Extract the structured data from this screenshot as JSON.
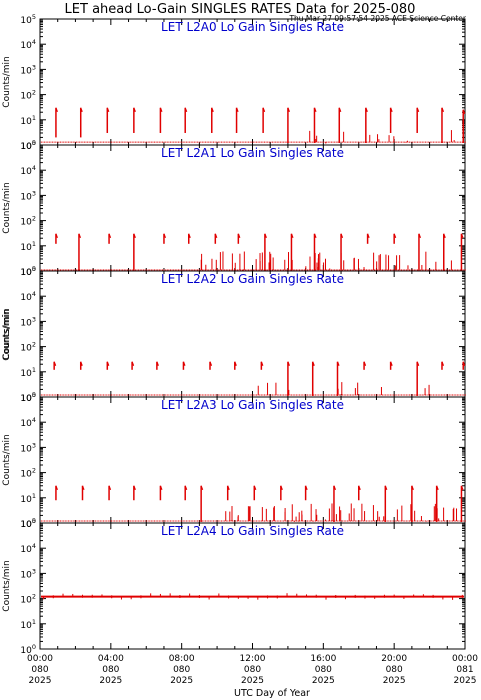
{
  "title": "LET ahead Lo-Gain SINGLES RATES Data for 2025-080",
  "timestamp": "Thu Mar 27 09:57:54 2025 ACE Science Center",
  "colors": {
    "data": "#e00000",
    "panel_title": "#0000cc",
    "frame": "#000000"
  },
  "ylabel": "Counts/min",
  "xlabel": "UTC Day of Year",
  "y_ticks": [
    {
      "exp": "0",
      "value": 1
    },
    {
      "exp": "1",
      "value": 10
    },
    {
      "exp": "2",
      "value": 100
    },
    {
      "exp": "3",
      "value": 1000
    },
    {
      "exp": "4",
      "value": 10000
    },
    {
      "exp": "5",
      "value": 100000
    }
  ],
  "x_ticks": [
    {
      "hour": 0,
      "time": "00:00",
      "doy": "080",
      "year": "2025"
    },
    {
      "hour": 4,
      "time": "04:00",
      "doy": "080",
      "year": "2025"
    },
    {
      "hour": 8,
      "time": "08:00",
      "doy": "080",
      "year": "2025"
    },
    {
      "hour": 12,
      "time": "12:00",
      "doy": "080",
      "year": "2025"
    },
    {
      "hour": 16,
      "time": "16:00",
      "doy": "080",
      "year": "2025"
    },
    {
      "hour": 20,
      "time": "20:00",
      "doy": "080",
      "year": "2025"
    },
    {
      "hour": 24,
      "time": "00:00",
      "doy": "081",
      "year": "2025"
    }
  ],
  "chart_data": [
    {
      "type": "scatter",
      "title": "LET L2A0 Lo Gain Singles Rate",
      "xlim": [
        0,
        24
      ],
      "ylim": [
        1,
        100000
      ],
      "yscale": "log",
      "baseline": 1.3,
      "spikes": [
        {
          "x": 0.9,
          "top": 30,
          "bottom": 2
        },
        {
          "x": 2.3,
          "top": 30,
          "bottom": 2
        },
        {
          "x": 3.8,
          "top": 30,
          "bottom": 3
        },
        {
          "x": 5.3,
          "top": 30,
          "bottom": 3
        },
        {
          "x": 6.8,
          "top": 30,
          "bottom": 3
        },
        {
          "x": 8.2,
          "top": 30,
          "bottom": 3
        },
        {
          "x": 9.7,
          "top": 30,
          "bottom": 3
        },
        {
          "x": 11.1,
          "top": 30,
          "bottom": 3
        },
        {
          "x": 12.6,
          "top": 30,
          "bottom": 3
        },
        {
          "x": 14.0,
          "top": 30,
          "bottom": 1.2
        },
        {
          "x": 15.5,
          "top": 30,
          "bottom": 1.2
        },
        {
          "x": 16.9,
          "top": 30,
          "bottom": 1.2
        },
        {
          "x": 18.4,
          "top": 30,
          "bottom": 1.2
        },
        {
          "x": 19.8,
          "top": 30,
          "bottom": 3
        },
        {
          "x": 21.3,
          "top": 30,
          "bottom": 3
        },
        {
          "x": 22.7,
          "top": 30,
          "bottom": 1.2
        },
        {
          "x": 23.9,
          "top": 25,
          "bottom": 1.2
        }
      ],
      "bursts": [
        {
          "from": 14.5,
          "to": 23.8,
          "n": 14,
          "maxY": 4
        }
      ]
    },
    {
      "type": "scatter",
      "title": "LET L2A1 Lo Gain Singles Rate",
      "xlim": [
        0,
        24
      ],
      "ylim": [
        1,
        100000
      ],
      "yscale": "log",
      "baseline": 1.1,
      "spikes": [
        {
          "x": 0.9,
          "top": 30,
          "bottom": 12
        },
        {
          "x": 2.2,
          "top": 30,
          "bottom": 1
        },
        {
          "x": 3.9,
          "top": 30,
          "bottom": 12
        },
        {
          "x": 5.3,
          "top": 30,
          "bottom": 1
        },
        {
          "x": 7.0,
          "top": 30,
          "bottom": 12
        },
        {
          "x": 8.4,
          "top": 30,
          "bottom": 12
        },
        {
          "x": 9.9,
          "top": 30,
          "bottom": 12
        },
        {
          "x": 11.2,
          "top": 30,
          "bottom": 12
        },
        {
          "x": 12.7,
          "top": 30,
          "bottom": 1
        },
        {
          "x": 14.2,
          "top": 30,
          "bottom": 1
        },
        {
          "x": 15.5,
          "top": 30,
          "bottom": 1
        },
        {
          "x": 17.0,
          "top": 30,
          "bottom": 1
        },
        {
          "x": 18.5,
          "top": 30,
          "bottom": 12
        },
        {
          "x": 20.0,
          "top": 30,
          "bottom": 12
        },
        {
          "x": 21.4,
          "top": 30,
          "bottom": 1
        },
        {
          "x": 22.8,
          "top": 30,
          "bottom": 1
        },
        {
          "x": 23.8,
          "top": 30,
          "bottom": 1
        }
      ],
      "bursts": [
        {
          "from": 9.0,
          "to": 23.9,
          "n": 60,
          "maxY": 6
        }
      ]
    },
    {
      "type": "scatter",
      "title": "LET L2A2 Lo Gain Singles Rate",
      "xlim": [
        0,
        24
      ],
      "ylim": [
        1,
        100000
      ],
      "yscale": "log",
      "baseline": 1.2,
      "spikes": [
        {
          "x": 0.8,
          "top": 25,
          "bottom": 12
        },
        {
          "x": 2.3,
          "top": 25,
          "bottom": 12
        },
        {
          "x": 3.8,
          "top": 25,
          "bottom": 12
        },
        {
          "x": 5.2,
          "top": 25,
          "bottom": 12
        },
        {
          "x": 6.6,
          "top": 25,
          "bottom": 12
        },
        {
          "x": 8.1,
          "top": 25,
          "bottom": 12
        },
        {
          "x": 9.6,
          "top": 25,
          "bottom": 12
        },
        {
          "x": 11.0,
          "top": 25,
          "bottom": 12
        },
        {
          "x": 12.5,
          "top": 25,
          "bottom": 12
        },
        {
          "x": 14.0,
          "top": 25,
          "bottom": 1.1
        },
        {
          "x": 15.4,
          "top": 25,
          "bottom": 1.1
        },
        {
          "x": 16.8,
          "top": 25,
          "bottom": 1.1
        },
        {
          "x": 18.3,
          "top": 25,
          "bottom": 12
        },
        {
          "x": 19.8,
          "top": 25,
          "bottom": 12
        },
        {
          "x": 21.3,
          "top": 25,
          "bottom": 1.1
        },
        {
          "x": 22.7,
          "top": 25,
          "bottom": 12
        },
        {
          "x": 23.9,
          "top": 25,
          "bottom": 12
        }
      ],
      "bursts": [
        {
          "from": 12.0,
          "to": 23.0,
          "n": 12,
          "maxY": 4
        }
      ]
    },
    {
      "type": "scatter",
      "title": "LET L2A3 Lo Gain Singles Rate",
      "xlim": [
        0,
        24
      ],
      "ylim": [
        1,
        100000
      ],
      "yscale": "log",
      "baseline": 1.2,
      "spikes": [
        {
          "x": 0.9,
          "top": 30,
          "bottom": 8
        },
        {
          "x": 2.4,
          "top": 30,
          "bottom": 8
        },
        {
          "x": 3.9,
          "top": 30,
          "bottom": 8
        },
        {
          "x": 5.3,
          "top": 30,
          "bottom": 8
        },
        {
          "x": 6.8,
          "top": 30,
          "bottom": 8
        },
        {
          "x": 8.2,
          "top": 30,
          "bottom": 8
        },
        {
          "x": 9.1,
          "top": 30,
          "bottom": 1.1
        },
        {
          "x": 10.6,
          "top": 30,
          "bottom": 8
        },
        {
          "x": 12.1,
          "top": 30,
          "bottom": 8
        },
        {
          "x": 13.6,
          "top": 30,
          "bottom": 8
        },
        {
          "x": 15.0,
          "top": 30,
          "bottom": 8
        },
        {
          "x": 16.6,
          "top": 30,
          "bottom": 1.1
        },
        {
          "x": 18.0,
          "top": 30,
          "bottom": 8
        },
        {
          "x": 19.5,
          "top": 30,
          "bottom": 1.1
        },
        {
          "x": 21.0,
          "top": 30,
          "bottom": 1.1
        },
        {
          "x": 22.4,
          "top": 30,
          "bottom": 1.1
        },
        {
          "x": 23.8,
          "top": 30,
          "bottom": 1.1
        }
      ],
      "bursts": [
        {
          "from": 10.0,
          "to": 23.9,
          "n": 55,
          "maxY": 6
        }
      ]
    },
    {
      "type": "line",
      "title": "LET L2A4 Lo Gain Singles Rate",
      "xlim": [
        0,
        24
      ],
      "ylim": [
        1,
        100000
      ],
      "yscale": "log",
      "flat_level": 120
    }
  ]
}
